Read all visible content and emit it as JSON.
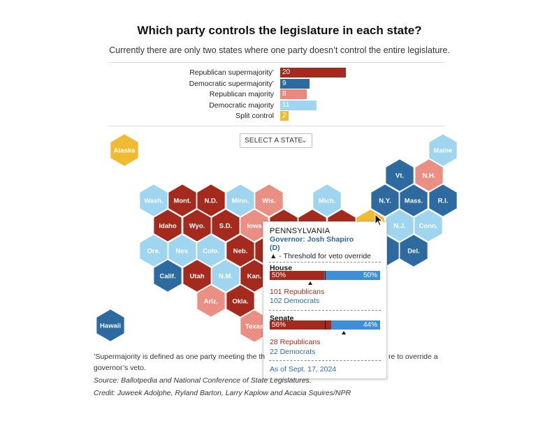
{
  "title": "Which party controls the legislature in each state?",
  "subtitle": "Currently there are only two states where one party doesn’t control the entire legislature.",
  "chart_data": {
    "type": "hex-map",
    "categories": [
      {
        "key": "rsuper",
        "label": "Republican supermajority’",
        "value": 20,
        "color": "#a32a1c"
      },
      {
        "key": "dsuper",
        "label": "Democratic supermajority’",
        "value": 9,
        "color": "#2d6a9f"
      },
      {
        "key": "rmaj",
        "label": "Republican majority",
        "value": 8,
        "color": "#e9887c"
      },
      {
        "key": "dmaj",
        "label": "Democratic majority",
        "value": 11,
        "color": "#9fd5ef"
      },
      {
        "key": "split",
        "label": "Split control",
        "value": 2,
        "color": "#f0bb33"
      }
    ],
    "states": [
      {
        "label": "Alaska",
        "cat": "split"
      },
      {
        "label": "Hawaii",
        "cat": "dsuper"
      },
      {
        "label": "Maine",
        "cat": "dmaj"
      },
      {
        "label": "Vt.",
        "cat": "dsuper"
      },
      {
        "label": "N.H.",
        "cat": "rmaj"
      },
      {
        "label": "Wash.",
        "cat": "dmaj"
      },
      {
        "label": "Mont.",
        "cat": "rsuper"
      },
      {
        "label": "N.D.",
        "cat": "rsuper"
      },
      {
        "label": "Minn.",
        "cat": "dmaj"
      },
      {
        "label": "Wis.",
        "cat": "rmaj"
      },
      {
        "label": "Mich.",
        "cat": "dmaj"
      },
      {
        "label": "N.Y.",
        "cat": "dsuper"
      },
      {
        "label": "Mass.",
        "cat": "dsuper"
      },
      {
        "label": "R.I.",
        "cat": "dsuper"
      },
      {
        "label": "Idaho",
        "cat": "rsuper"
      },
      {
        "label": "Wyo.",
        "cat": "rsuper"
      },
      {
        "label": "S.D.",
        "cat": "rsuper"
      },
      {
        "label": "Iowa",
        "cat": "rmaj"
      },
      {
        "label": "N.J.",
        "cat": "dmaj"
      },
      {
        "label": "Conn.",
        "cat": "dmaj"
      },
      {
        "label": "Ore.",
        "cat": "dmaj"
      },
      {
        "label": "Nev.",
        "cat": "dmaj"
      },
      {
        "label": "Colo.",
        "cat": "dmaj"
      },
      {
        "label": "Neb.",
        "cat": "rsuper"
      },
      {
        "label": "Del.",
        "cat": "dsuper"
      },
      {
        "label": "Calif.",
        "cat": "dsuper"
      },
      {
        "label": "Utah",
        "cat": "rsuper"
      },
      {
        "label": "N.M.",
        "cat": "dmaj"
      },
      {
        "label": "Kan.",
        "cat": "rsuper"
      },
      {
        "label": "Ariz.",
        "cat": "rmaj"
      },
      {
        "label": "Okla.",
        "cat": "rsuper"
      },
      {
        "label": "Texas",
        "cat": "rmaj"
      },
      {
        "label": "",
        "cat": "rsuper"
      },
      {
        "label": "",
        "cat": "rsuper"
      },
      {
        "label": "",
        "cat": "rsuper"
      },
      {
        "label": "",
        "cat": "rsuper"
      },
      {
        "label": "",
        "cat": "split"
      },
      {
        "label": "",
        "cat": "dsuper"
      },
      {
        "label": "",
        "cat": "dsuper"
      },
      {
        "label": "",
        "cat": "dsuper"
      }
    ]
  },
  "select": {
    "label": "SELECT A STATE",
    "chevron": "chevron-down-icon"
  },
  "tooltip": {
    "state": "PENNSYLVANIA",
    "governor": "Governor: Josh Shapiro",
    "party": "(D)",
    "threshold_note": "▲ - Threshold for veto override",
    "house": {
      "label": "House",
      "rep_pct": "50%",
      "dem_pct": "50%",
      "rep_share": 0.495,
      "veto_threshold": 0.37,
      "rep_count": "101 Republicans",
      "dem_count": "102 Democrats"
    },
    "senate": {
      "label": "Senate",
      "rep_pct": "56%",
      "dem_pct": "44%",
      "rep_share": 0.56,
      "veto_threshold": 0.67,
      "rep_count": "28 Republicans",
      "dem_count": "22 Democrats"
    },
    "as_of": "As of Sept. 17, 2024"
  },
  "footnotes": {
    "supermajority": "’Supermajority is defined as one party meeting the th",
    "supermajority_tail": "re to override a",
    "supermajority_line2": "governor’s veto.",
    "source": "Source: Ballotpedia and National Conference of State Legislatures.",
    "credit": "Credit: Juweek Adolphe, Ryland Barton, Larry Kaplow and Acacia Squires/NPR"
  },
  "colors": {
    "rep": "#a32a1c",
    "dem_tip": "#3e8fd6",
    "dem_text": "#2d6a9f"
  }
}
